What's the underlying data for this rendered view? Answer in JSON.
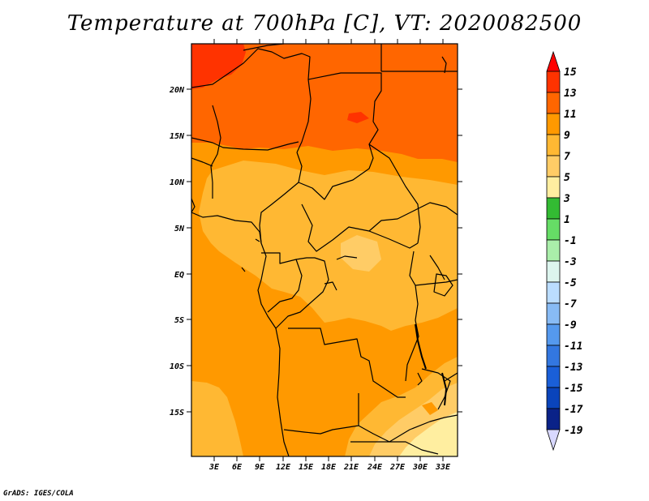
{
  "title": "Temperature at 700hPa [C], VT: 2020082500",
  "footer": "GrADS: IGES/COLA",
  "map": {
    "lat_labels": [
      "20N",
      "15N",
      "10N",
      "5N",
      "EQ",
      "5S",
      "10S",
      "15S"
    ],
    "lon_labels": [
      "3E",
      "6E",
      "9E",
      "12E",
      "15E",
      "18E",
      "21E",
      "24E",
      "27E",
      "30E",
      "33E"
    ]
  },
  "colorbar": {
    "labels": [
      "15",
      "13",
      "11",
      "9",
      "7",
      "5",
      "3",
      "1",
      "-1",
      "-3",
      "-5",
      "-7",
      "-9",
      "-11",
      "-13",
      "-15",
      "-17",
      "-19"
    ],
    "colors": {
      "gt15": "#ff0000",
      "c13_15": "#ff3300",
      "c11_13": "#ff6600",
      "c9_11": "#ff9900",
      "c7_9": "#ffb833",
      "c5_7": "#ffcc66",
      "c3_5": "#ffeea0",
      "c1_3": "#33bb33",
      "cm1_1": "#66dd66",
      "cm3_m1": "#aaeeaa",
      "cm5_m3": "#ddf5ee",
      "cm7_m5": "#bbddff",
      "cm9_m7": "#88bbf5",
      "cm11_m9": "#5599ee",
      "cm13_m11": "#3377e0",
      "cm15_m13": "#1a5fd8",
      "cm17_m15": "#0a44bb",
      "cm19_m17": "#0a2288",
      "lt19": "#d8d8ff"
    }
  }
}
